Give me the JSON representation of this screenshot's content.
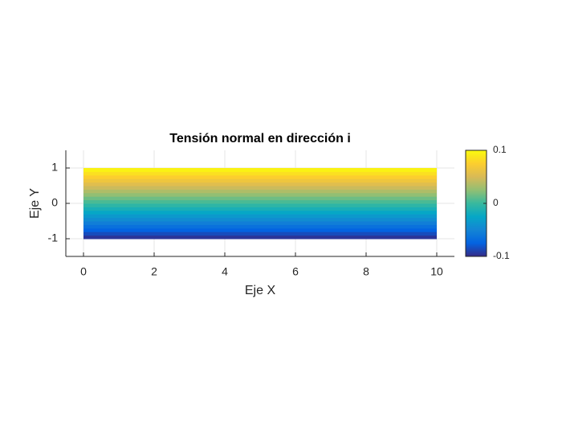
{
  "chart_data": {
    "type": "heatmap",
    "title": "Tensión normal en dirección i",
    "xlabel": "Eje X",
    "ylabel": "Eje Y",
    "x_range": [
      0,
      10
    ],
    "y_edges": [
      -1,
      -0.9,
      -0.8,
      -0.7,
      -0.6,
      -0.5,
      -0.4,
      -0.3,
      -0.2,
      -0.1,
      0,
      0.1,
      0.2,
      0.3,
      0.4,
      0.5,
      0.6,
      0.7,
      0.8,
      0.9,
      1
    ],
    "values": [
      -0.095,
      -0.085,
      -0.075,
      -0.065,
      -0.055,
      -0.045,
      -0.035,
      -0.025,
      -0.015,
      -0.005,
      0.005,
      0.015,
      0.025,
      0.035,
      0.045,
      0.055,
      0.065,
      0.075,
      0.085,
      0.095
    ],
    "xlim": [
      -0.5,
      10.5
    ],
    "xticks": [
      0,
      2,
      4,
      6,
      8,
      10
    ],
    "ylim": [
      -1.5,
      1.5
    ],
    "yticks": [
      -1,
      0,
      1
    ],
    "grid": true,
    "colormap": "parula",
    "clim": [
      -0.1,
      0.1
    ],
    "cticks": [
      -0.1,
      0,
      0.1
    ]
  }
}
